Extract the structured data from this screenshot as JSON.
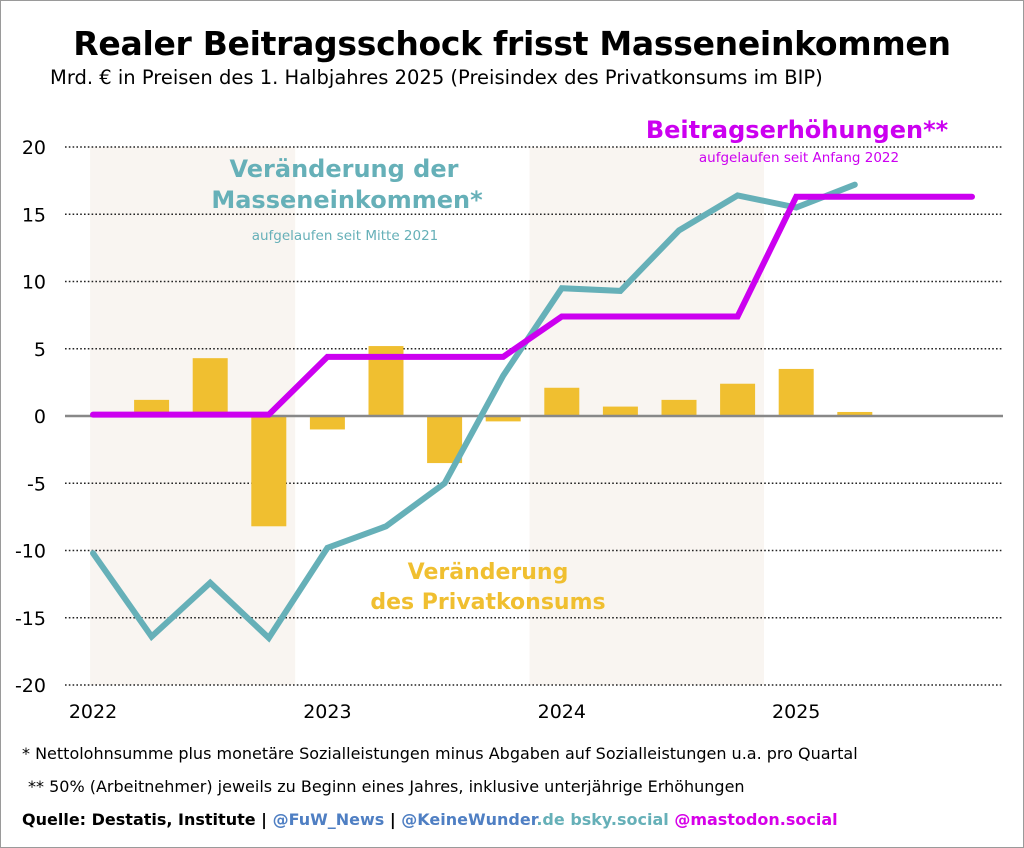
{
  "title": "Realer Beitragsschock frisst Masseneinkommen",
  "subtitle": "Mrd. € in Preisen des 1. Halbjahres 2025 (Preisindex des Privatkonsums im BIP)",
  "colors": {
    "masseneinkommen": "#66b0b8",
    "beitrag": "#cc00f0",
    "privatkonsum": "#f0bf30",
    "shade": "#f9f5f1",
    "grid": "#222222",
    "zero": "#888888"
  },
  "chart_data": {
    "type": "line+bar",
    "title": "Realer Beitragsschock frisst Masseneinkommen",
    "ylabel": "Mrd. €",
    "xlabel": "",
    "ylim": [
      -20,
      20
    ],
    "yticks": [
      20,
      15,
      10,
      5,
      0,
      -5,
      -10,
      -15,
      -20
    ],
    "grid": true,
    "x": [
      "2022Q1",
      "2022Q2",
      "2022Q3",
      "2022Q4",
      "2023Q1",
      "2023Q2",
      "2023Q3",
      "2023Q4",
      "2024Q1",
      "2024Q2",
      "2024Q3",
      "2024Q4",
      "2025Q1",
      "2025Q2",
      "2025Q3",
      "2025Q4"
    ],
    "xtick_labels": [
      {
        "label": "2022",
        "index": 0
      },
      {
        "label": "2023",
        "index": 4
      },
      {
        "label": "2024",
        "index": 8
      },
      {
        "label": "2025",
        "index": 12
      }
    ],
    "shaded_years": [
      {
        "from": -0.05,
        "to": 3.45
      },
      {
        "from": 7.45,
        "to": 11.45
      }
    ],
    "series": [
      {
        "name": "Privatkonsum",
        "type": "bar",
        "label": [
          "Veränderung",
          "des Privatkonsums"
        ],
        "values": [
          null,
          1.2,
          4.3,
          -8.2,
          -1.0,
          5.2,
          -3.5,
          -0.4,
          2.1,
          0.7,
          1.2,
          2.4,
          3.5,
          0.3,
          null,
          null
        ]
      },
      {
        "name": "Masseneinkommen",
        "type": "line",
        "label": [
          "Veränderung der",
          "Masseneinkommen*"
        ],
        "sublabel": "aufgelaufen seit Mitte 2021",
        "values": [
          -10.2,
          -16.4,
          -12.4,
          -16.5,
          -9.8,
          -8.2,
          -5.0,
          3.0,
          9.5,
          9.3,
          13.8,
          16.4,
          15.5,
          17.2,
          null,
          null
        ]
      },
      {
        "name": "Beitragserhöhungen",
        "type": "line",
        "label": [
          "Beitragserhöhungen**"
        ],
        "sublabel": "aufgelaufen seit Anfang 2022",
        "values": [
          0.1,
          0.1,
          0.1,
          0.1,
          4.4,
          4.4,
          4.4,
          4.4,
          7.4,
          7.4,
          7.4,
          7.4,
          16.3,
          16.3,
          16.3,
          16.3
        ]
      }
    ]
  },
  "footnotes": {
    "note1": "* Nettolohnsumme plus monetäre Sozialleistungen minus Abgaben auf Sozialleistungen u.a. pro Quartal",
    "note2": "** 50% (Arbeitnehmer) jeweils zu Beginn eines Jahres, inklusive unterjährige Erhöhungen",
    "source_label": "Quelle: Destatis, Institute |",
    "handle_fuw": "@FuW_News",
    "sep": "|",
    "handle_keine": "@KeineWunder",
    "domain_de": ".de",
    "bsky": "bsky.social",
    "mastodon": "@mastodon.social"
  }
}
